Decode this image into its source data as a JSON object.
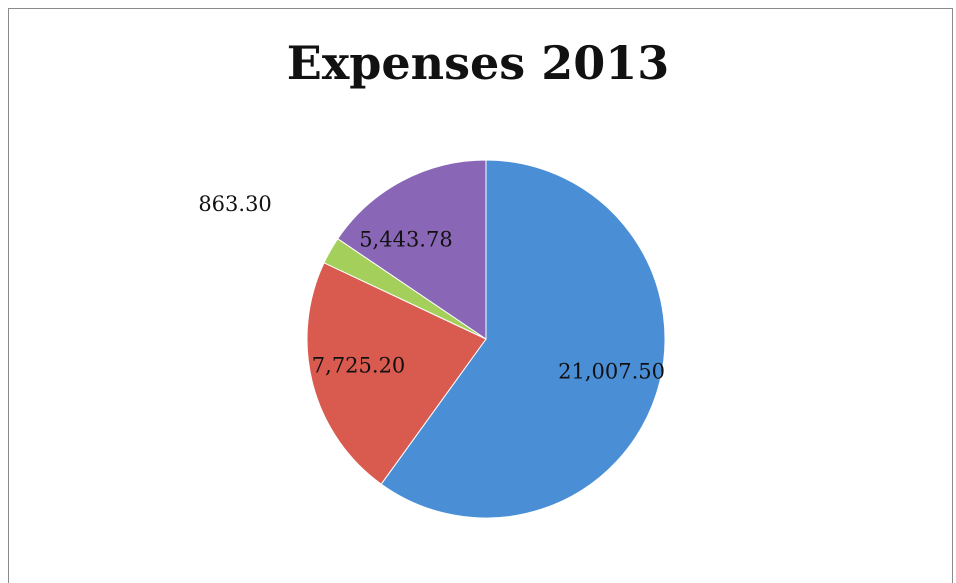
{
  "chart_data": {
    "type": "pie",
    "title": "Expenses 2013",
    "slices": [
      {
        "label": "21,007.50",
        "value": 21007.5,
        "color": "#4a8fd6"
      },
      {
        "label": "7,725.20",
        "value": 7725.2,
        "color": "#d95a4f"
      },
      {
        "label": "863.30",
        "value": 863.3,
        "color": "#a4cf5b"
      },
      {
        "label": "5,443.78",
        "value": 5443.78,
        "color": "#8a67b6"
      }
    ],
    "start_angle_deg": 0,
    "direction": "clockwise",
    "legend": "none"
  }
}
